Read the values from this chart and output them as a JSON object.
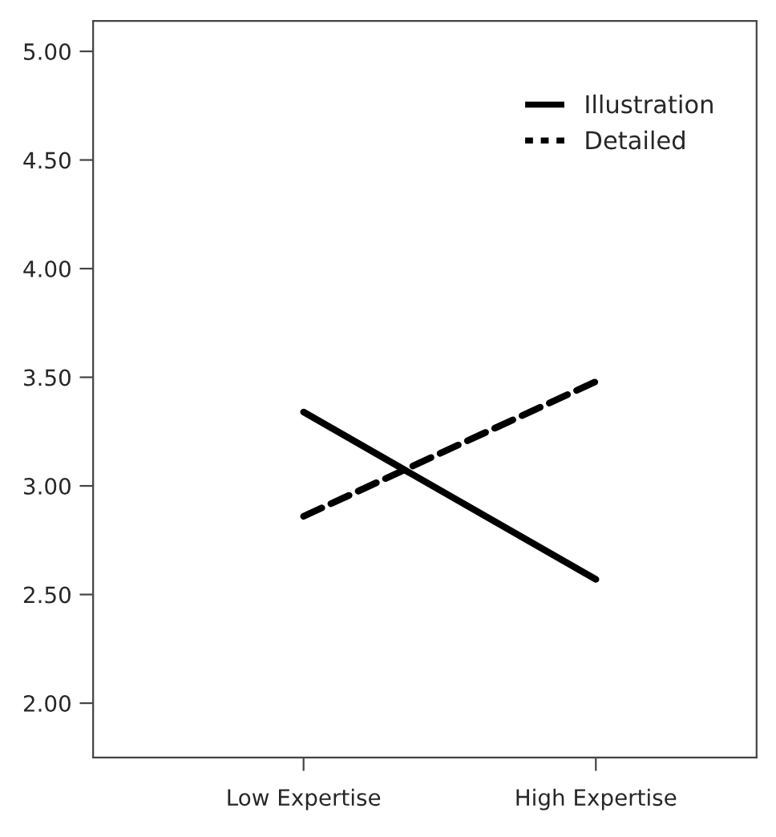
{
  "chart_data": {
    "type": "line",
    "categories": [
      "Low Expertise",
      "High Expertise"
    ],
    "series": [
      {
        "name": "Illustration",
        "color": "#000000",
        "values": [
          3.34,
          2.57
        ],
        "line_style": "solid"
      },
      {
        "name": "Detailed",
        "color": "#000000",
        "values": [
          2.86,
          3.48
        ],
        "line_style": "dashed"
      }
    ],
    "ylim": [
      1.75,
      5.14
    ],
    "yticks": [
      {
        "value": 2,
        "label": "2.00"
      },
      {
        "value": 2.5,
        "label": "2.50"
      },
      {
        "value": 3,
        "label": "3.00"
      },
      {
        "value": 3.5,
        "label": "3.50"
      },
      {
        "value": 4,
        "label": "4.00"
      },
      {
        "value": 4.5,
        "label": "4.50"
      },
      {
        "value": 5,
        "label": "5.00"
      }
    ],
    "grid": false,
    "legend": "top right",
    "marker": "none"
  }
}
